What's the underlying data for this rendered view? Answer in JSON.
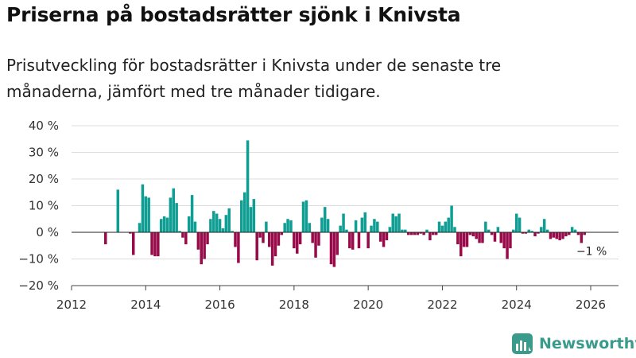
{
  "header": {
    "title": "Priserna på bostadsrätter sjönk i Knivsta",
    "subtitle": "Prisutveckling för bostadsrätter i Knivsta under de senaste tre månaderna, jämfört med tre månader tidigare."
  },
  "brand": {
    "name": "Newsworthy",
    "icon": "newsworthy-logo-icon",
    "color": "#3a9b8c"
  },
  "colors": {
    "positive": "#0f9e93",
    "negative": "#990a4a",
    "grid": "#dddddd",
    "axis": "#444444"
  },
  "chart_data": {
    "type": "bar",
    "title": "Priserna på bostadsrätter sjönk i Knivsta",
    "xlabel": "",
    "ylabel": "",
    "ylim": [
      -20,
      40
    ],
    "yticks": [
      -20,
      -10,
      0,
      10,
      20,
      30,
      40
    ],
    "ytick_labels": [
      "−20 %",
      "−10 %",
      "0 %",
      "10 %",
      "20 %",
      "30 %",
      "40 %"
    ],
    "xlim": [
      2012,
      2026.75
    ],
    "xticks": [
      2012,
      2014,
      2016,
      2018,
      2020,
      2022,
      2024,
      2026
    ],
    "xtick_labels": [
      "2012",
      "2014",
      "2016",
      "2018",
      "2020",
      "2022",
      "2024",
      "2026"
    ],
    "start": 2012.0,
    "step": 0.08333,
    "values": [
      null,
      null,
      null,
      null,
      null,
      null,
      null,
      null,
      null,
      null,
      null,
      -4.5,
      null,
      null,
      null,
      16,
      null,
      null,
      null,
      -0.5,
      -8.5,
      null,
      3.5,
      18,
      13.5,
      13,
      -8.5,
      -9,
      -9,
      5,
      6,
      5.5,
      13,
      16.5,
      11,
      0.5,
      -2,
      -4.5,
      6,
      14,
      4,
      -6.5,
      -12,
      -10,
      -4.5,
      5,
      8,
      7,
      5,
      1.5,
      6.5,
      9,
      0.5,
      -5.5,
      -11.5,
      12,
      15,
      34.5,
      9.5,
      12.5,
      -10.5,
      -2,
      -4,
      4,
      -5.5,
      -12.5,
      -9,
      -5,
      -1,
      3.5,
      5,
      4.5,
      -6,
      -8,
      -4.5,
      11.5,
      12,
      3.5,
      -4,
      -9.5,
      -5,
      5.5,
      9.5,
      5,
      -12,
      -13,
      -8.5,
      2.5,
      7,
      1,
      -6,
      -6.5,
      4.5,
      -6,
      5.5,
      7.5,
      -6,
      2.5,
      5,
      4,
      -3.5,
      -5.5,
      -3,
      2,
      7,
      6,
      7,
      1,
      1,
      -1,
      -1,
      -1,
      -1,
      -0.5,
      -1,
      1,
      -3,
      -1,
      -1,
      4,
      2.5,
      4,
      5.5,
      10,
      2,
      -4.5,
      -9,
      -5.5,
      -5.5,
      -1,
      -1.5,
      -2.5,
      -4,
      -4,
      4,
      1,
      -1,
      -3.5,
      2,
      -4,
      -6,
      -10,
      -6,
      1,
      7,
      5.5,
      -0.5,
      -0.5,
      1,
      0.5,
      -1.5,
      -0.5,
      2,
      5,
      1,
      -2.5,
      -2,
      -2.5,
      -3,
      -2.5,
      -1.5,
      -1,
      2,
      1,
      -1,
      -4,
      -1
    ],
    "annotations": [
      {
        "label": "−1 %",
        "x": 2025.96,
        "y": -1
      }
    ]
  }
}
